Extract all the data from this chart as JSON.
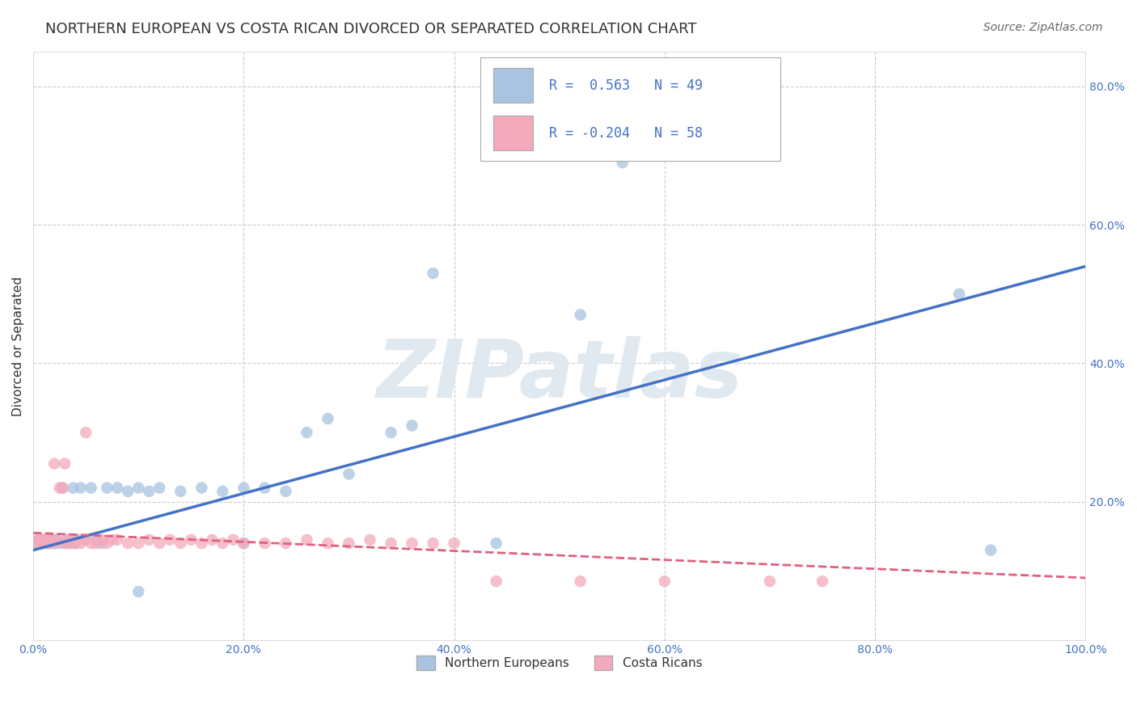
{
  "title": "NORTHERN EUROPEAN VS COSTA RICAN DIVORCED OR SEPARATED CORRELATION CHART",
  "source": "Source: ZipAtlas.com",
  "ylabel": "Divorced or Separated",
  "watermark": "ZIPatlas",
  "legend_blue_R": "0.563",
  "legend_blue_N": "49",
  "legend_pink_R": "-0.204",
  "legend_pink_N": "58",
  "blue_color": "#A8C4E0",
  "pink_color": "#F4AABC",
  "blue_line_color": "#4472C4",
  "pink_line_color": "#E06080",
  "background_color": "#FFFFFF",
  "grid_color": "#CCCCCC",
  "xlim": [
    0.0,
    1.0
  ],
  "ylim": [
    0.0,
    0.85
  ],
  "xticks": [
    0.0,
    0.2,
    0.4,
    0.6,
    0.8,
    1.0
  ],
  "yticks": [
    0.0,
    0.2,
    0.4,
    0.6,
    0.8
  ],
  "xtick_labels": [
    "0.0%",
    "20.0%",
    "40.0%",
    "60.0%",
    "80.0%",
    "100.0%"
  ],
  "ytick_labels": [
    "",
    "20.0%",
    "40.0%",
    "60.0%",
    "80.0%"
  ],
  "title_fontsize": 13,
  "axis_label_fontsize": 11,
  "tick_fontsize": 10,
  "source_fontsize": 10,
  "blue_line_x0": 0.0,
  "blue_line_y0": 0.13,
  "blue_line_x1": 1.0,
  "blue_line_y1": 0.54,
  "pink_line_x0": 0.0,
  "pink_line_y0": 0.155,
  "pink_line_x1": 1.0,
  "pink_line_y1": 0.09,
  "blue_points_x": [
    0.003,
    0.005,
    0.007,
    0.009,
    0.01,
    0.012,
    0.014,
    0.016,
    0.018,
    0.02,
    0.022,
    0.025,
    0.028,
    0.03,
    0.032,
    0.035,
    0.038,
    0.04,
    0.042,
    0.045,
    0.05,
    0.055,
    0.06,
    0.065,
    0.07,
    0.08,
    0.09,
    0.1,
    0.11,
    0.12,
    0.14,
    0.16,
    0.18,
    0.2,
    0.22,
    0.24,
    0.26,
    0.28,
    0.3,
    0.34,
    0.36,
    0.38,
    0.44,
    0.52,
    0.56,
    0.88,
    0.91,
    0.1,
    0.2
  ],
  "blue_points_y": [
    0.14,
    0.145,
    0.14,
    0.145,
    0.14,
    0.145,
    0.14,
    0.14,
    0.145,
    0.14,
    0.145,
    0.14,
    0.22,
    0.14,
    0.145,
    0.14,
    0.22,
    0.14,
    0.145,
    0.22,
    0.145,
    0.22,
    0.145,
    0.14,
    0.22,
    0.22,
    0.215,
    0.22,
    0.215,
    0.22,
    0.215,
    0.22,
    0.215,
    0.22,
    0.22,
    0.215,
    0.3,
    0.32,
    0.24,
    0.3,
    0.31,
    0.53,
    0.14,
    0.47,
    0.69,
    0.5,
    0.13,
    0.07,
    0.14
  ],
  "pink_points_x": [
    0.003,
    0.005,
    0.007,
    0.008,
    0.009,
    0.01,
    0.012,
    0.014,
    0.016,
    0.018,
    0.02,
    0.022,
    0.025,
    0.028,
    0.03,
    0.032,
    0.035,
    0.038,
    0.04,
    0.042,
    0.045,
    0.05,
    0.055,
    0.06,
    0.065,
    0.07,
    0.075,
    0.08,
    0.09,
    0.1,
    0.11,
    0.12,
    0.13,
    0.14,
    0.15,
    0.16,
    0.17,
    0.18,
    0.19,
    0.2,
    0.22,
    0.24,
    0.26,
    0.28,
    0.3,
    0.32,
    0.34,
    0.36,
    0.38,
    0.4,
    0.44,
    0.52,
    0.6,
    0.7,
    0.75,
    0.02,
    0.03,
    0.05
  ],
  "pink_points_y": [
    0.145,
    0.14,
    0.145,
    0.14,
    0.14,
    0.145,
    0.14,
    0.145,
    0.14,
    0.145,
    0.14,
    0.145,
    0.22,
    0.22,
    0.14,
    0.145,
    0.14,
    0.145,
    0.14,
    0.145,
    0.14,
    0.145,
    0.14,
    0.14,
    0.145,
    0.14,
    0.145,
    0.145,
    0.14,
    0.14,
    0.145,
    0.14,
    0.145,
    0.14,
    0.145,
    0.14,
    0.145,
    0.14,
    0.145,
    0.14,
    0.14,
    0.14,
    0.145,
    0.14,
    0.14,
    0.145,
    0.14,
    0.14,
    0.14,
    0.14,
    0.085,
    0.085,
    0.085,
    0.085,
    0.085,
    0.255,
    0.255,
    0.3
  ]
}
